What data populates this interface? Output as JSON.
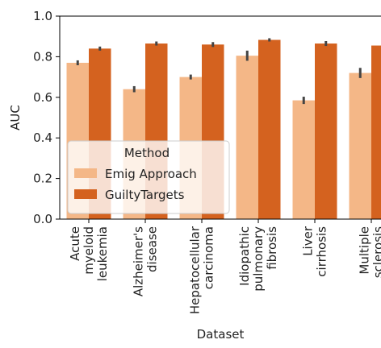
{
  "chart_data": {
    "type": "bar",
    "xlabel": "Dataset",
    "ylabel": "AUC",
    "ylim": [
      0,
      1.0
    ],
    "yticks": [
      "0.0",
      "0.2",
      "0.4",
      "0.6",
      "0.8",
      "1.0"
    ],
    "categories": [
      [
        "Acute",
        "myeloid",
        "leukemia"
      ],
      [
        "Alzheimer's",
        "disease"
      ],
      [
        "Hepatocellular",
        "carcinoma"
      ],
      [
        "Idiopathic",
        "pulmonary",
        "fibrosis"
      ],
      [
        "Liver",
        "cirrhosis"
      ],
      [
        "Multiple",
        "sclerosis"
      ]
    ],
    "series": [
      {
        "name": "Emig Approach",
        "color": "#f4b787",
        "values": [
          0.77,
          0.64,
          0.7,
          0.805,
          0.585,
          0.72
        ],
        "err": [
          0.012,
          0.015,
          0.012,
          0.025,
          0.018,
          0.025
        ]
      },
      {
        "name": "GuiltyTargets",
        "color": "#d4621f",
        "values": [
          0.84,
          0.865,
          0.86,
          0.883,
          0.865,
          0.855
        ],
        "err": [
          0.01,
          0.01,
          0.012,
          0.008,
          0.012,
          0.012
        ]
      }
    ],
    "legend": {
      "title": "Method",
      "position": "lower-left"
    },
    "grid": false
  }
}
